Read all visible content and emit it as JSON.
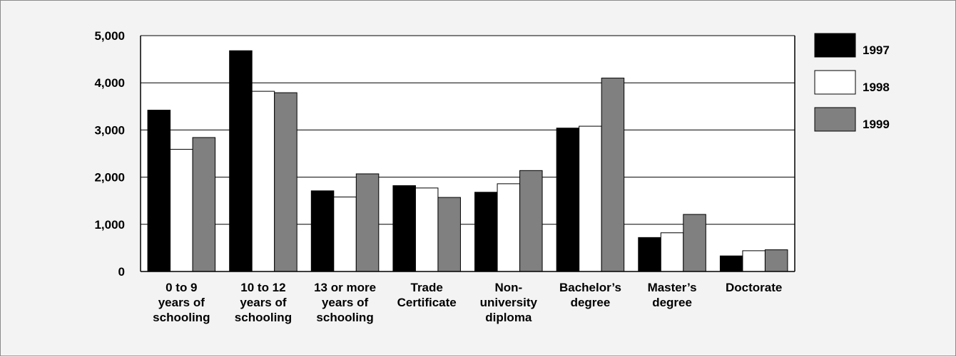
{
  "chart_data": {
    "type": "bar",
    "title": "",
    "xlabel": "",
    "ylabel": "",
    "ylim": [
      0,
      5000
    ],
    "yticks": [
      0,
      1000,
      2000,
      3000,
      4000,
      5000
    ],
    "ytick_labels": [
      "0",
      "1,000",
      "2,000",
      "3,000",
      "4,000",
      "5,000"
    ],
    "grid": true,
    "legend_position": "right",
    "categories": [
      [
        "0 to 9",
        "years of",
        "schooling"
      ],
      [
        "10 to 12",
        "years of",
        "schooling"
      ],
      [
        "13 or more",
        "years of",
        "schooling"
      ],
      [
        "Trade",
        "Certificate"
      ],
      [
        "Non-",
        "university",
        "diploma"
      ],
      [
        "Bachelor’s",
        "degree"
      ],
      [
        "Master’s",
        "degree"
      ],
      [
        "Doctorate"
      ]
    ],
    "series": [
      {
        "name": "1997",
        "color": "#000000",
        "values": [
          3420,
          4680,
          1710,
          1820,
          1680,
          3040,
          720,
          330
        ]
      },
      {
        "name": "1998",
        "color": "#ffffff",
        "values": [
          2590,
          3820,
          1580,
          1770,
          1860,
          3080,
          820,
          440
        ]
      },
      {
        "name": "1999",
        "color": "#808080",
        "values": [
          2840,
          3790,
          2070,
          1570,
          2140,
          4100,
          1210,
          460
        ]
      }
    ]
  }
}
